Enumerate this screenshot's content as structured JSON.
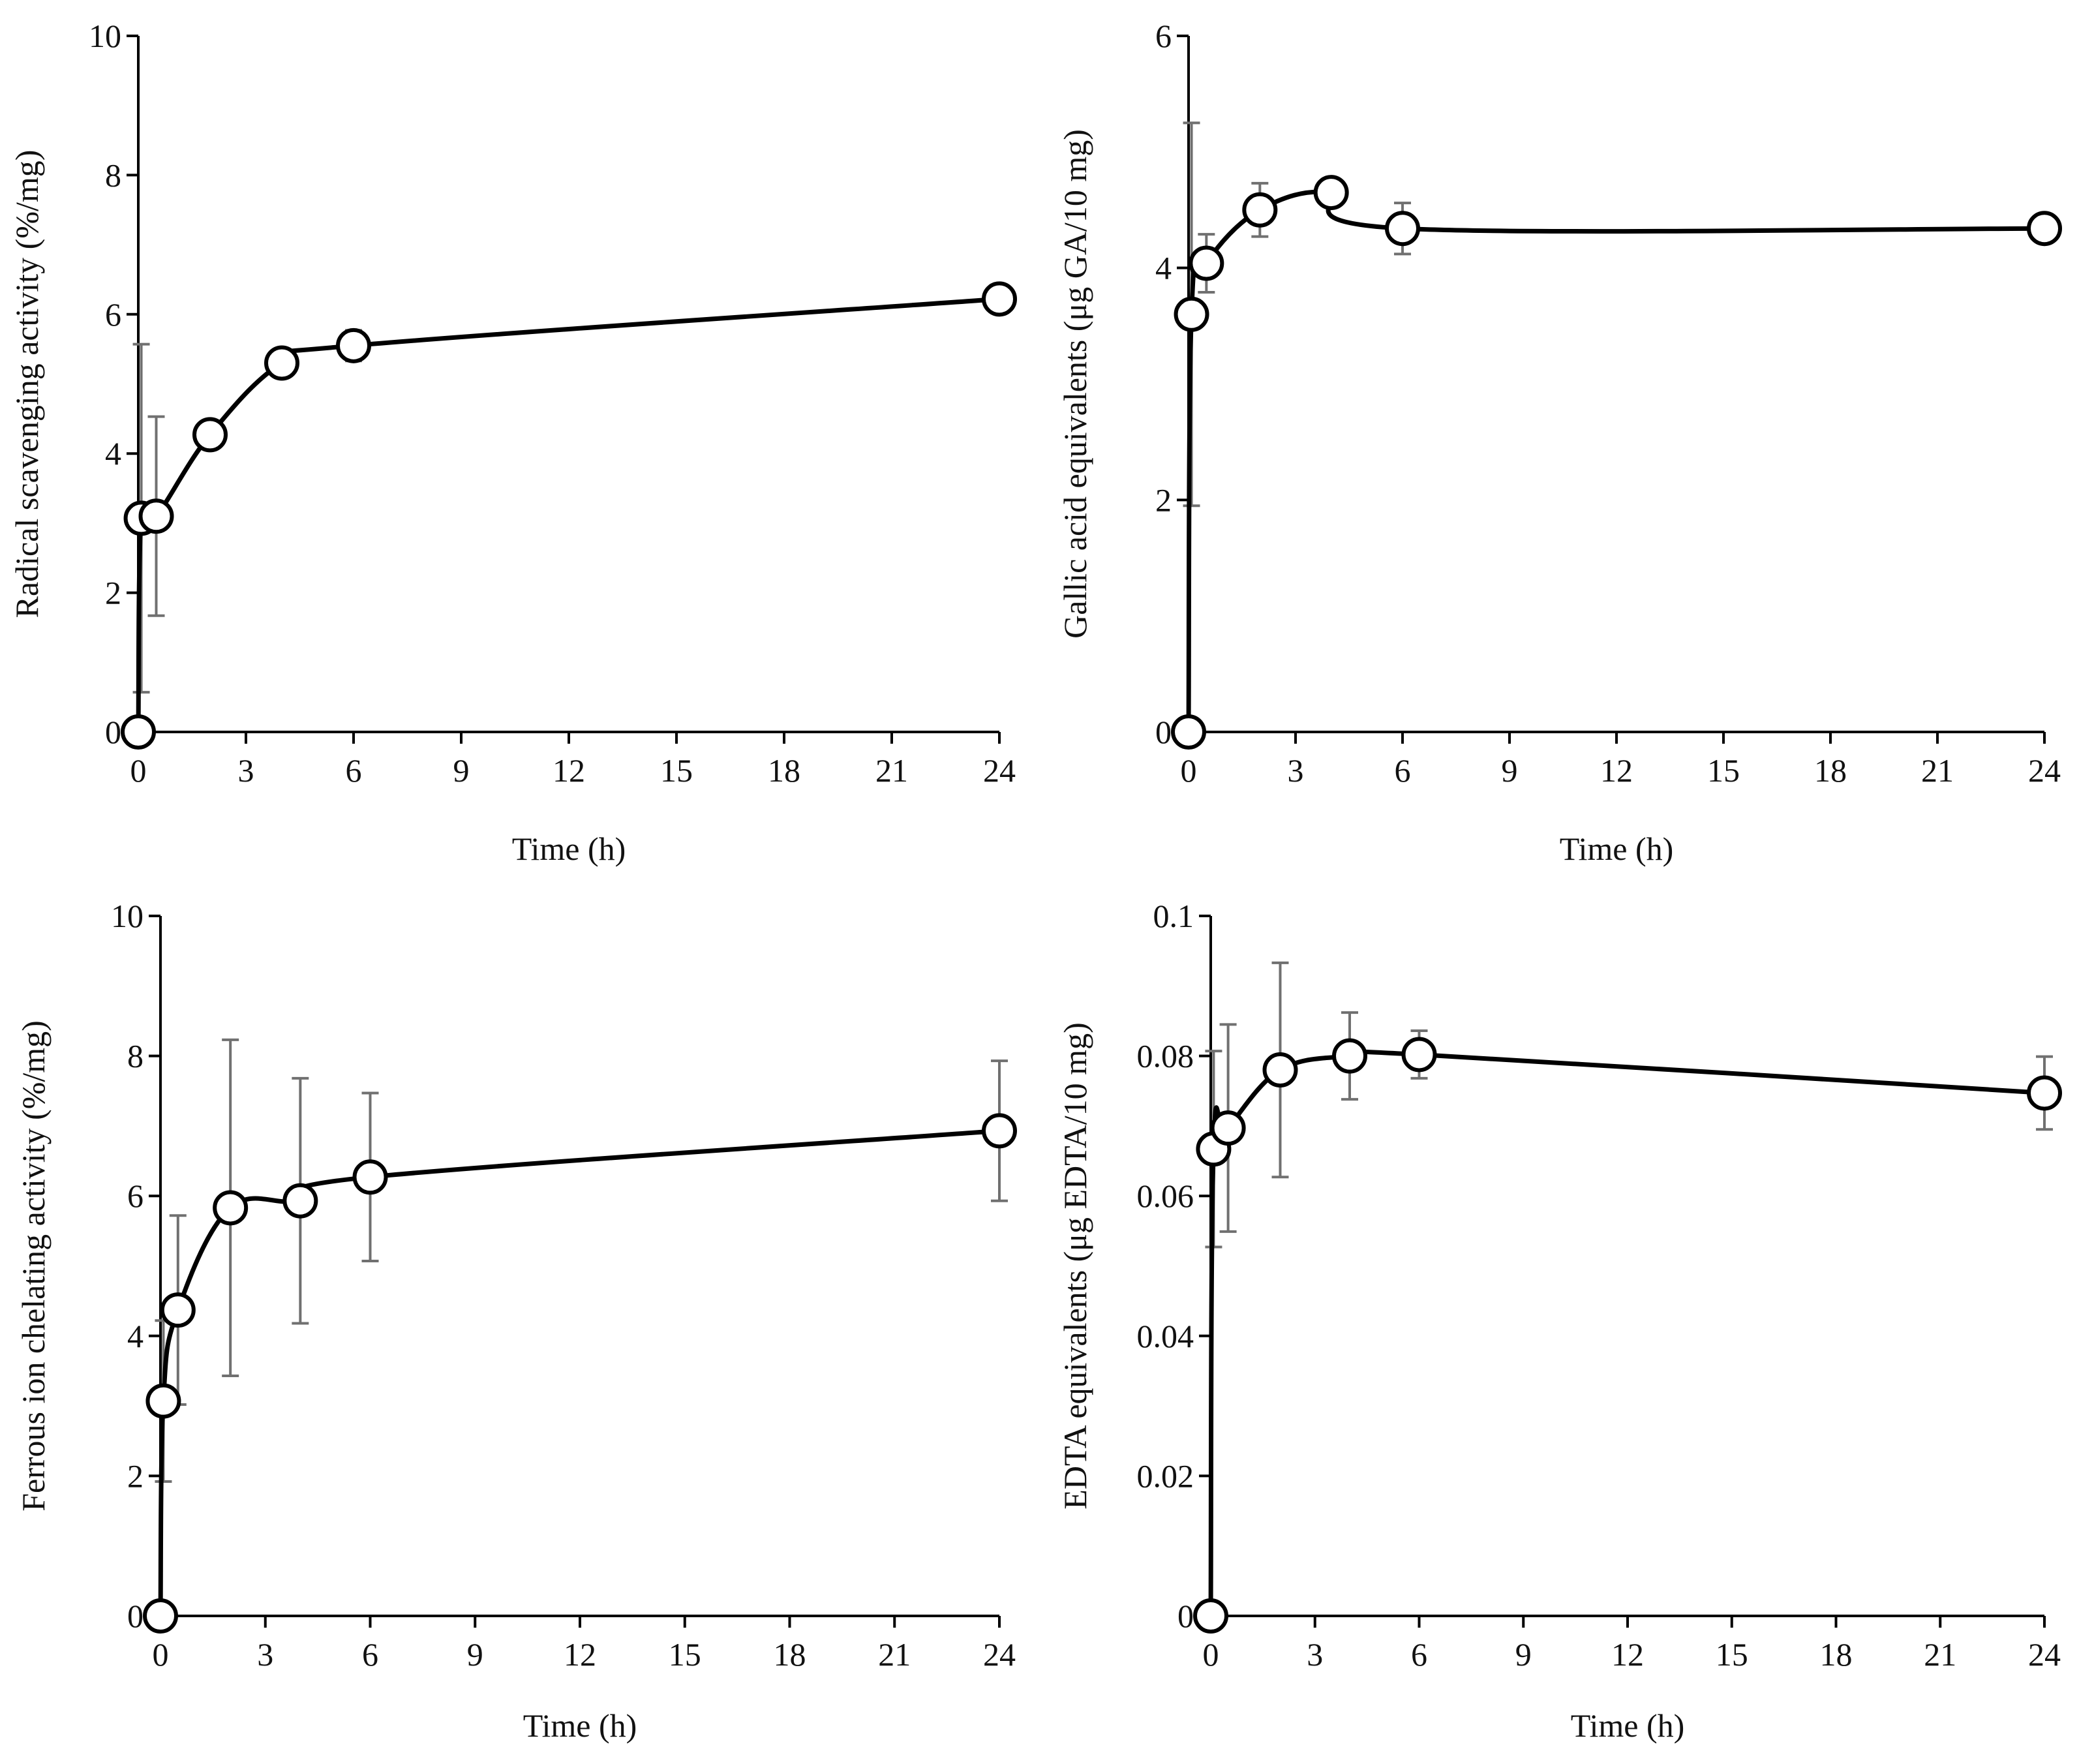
{
  "chart_data": [
    {
      "type": "line",
      "title": "",
      "xlabel": "Time (h)",
      "ylabel": "Radical scavenging activity (%/mg)",
      "xlim": [
        0,
        24
      ],
      "ylim": [
        0,
        10
      ],
      "xticks": [
        "0",
        "3",
        "6",
        "9",
        "12",
        "15",
        "18",
        "21",
        "24"
      ],
      "yticks": [
        "0",
        "2",
        "4",
        "6",
        "8",
        "10"
      ],
      "grid": false,
      "series": [
        {
          "name": "Radical scavenging activity",
          "x": [
            0,
            0.083,
            0.5,
            2,
            4,
            6,
            24
          ],
          "y": [
            0,
            3.07,
            3.1,
            4.27,
            5.3,
            5.55,
            6.22
          ],
          "err": [
            0,
            2.5,
            1.43,
            0.18,
            0.1,
            0.22,
            0.15
          ]
        }
      ]
    },
    {
      "type": "line",
      "title": "",
      "xlabel": "Time (h)",
      "ylabel": "Gallic acid equivalents (μg GA/10 mg)",
      "xlim": [
        0,
        24
      ],
      "ylim": [
        0,
        6
      ],
      "xticks": [
        "0",
        "3",
        "6",
        "9",
        "12",
        "15",
        "18",
        "21",
        "24"
      ],
      "yticks": [
        "0",
        "2",
        "4",
        "6"
      ],
      "grid": false,
      "series": [
        {
          "name": "Gallic acid equivalents",
          "x": [
            0,
            0.083,
            0.5,
            2,
            4,
            6,
            24
          ],
          "y": [
            0,
            3.6,
            4.04,
            4.5,
            4.65,
            4.34,
            4.34
          ],
          "err": [
            0,
            1.65,
            0.25,
            0.23,
            0.05,
            0.22,
            0.05
          ]
        }
      ]
    },
    {
      "type": "line",
      "title": "",
      "xlabel": "Time (h)",
      "ylabel": "Ferrous ion chelating activity (%/mg)",
      "xlim": [
        0,
        24
      ],
      "ylim": [
        0,
        10
      ],
      "xticks": [
        "0",
        "3",
        "6",
        "9",
        "12",
        "15",
        "18",
        "21",
        "24"
      ],
      "yticks": [
        "0",
        "2",
        "4",
        "6",
        "8",
        "10"
      ],
      "grid": false,
      "series": [
        {
          "name": "Ferrous ion chelating activity",
          "x": [
            0,
            0.083,
            0.5,
            2,
            4,
            6,
            24
          ],
          "y": [
            0,
            3.07,
            4.37,
            5.83,
            5.93,
            6.27,
            6.93
          ],
          "err": [
            0,
            1.15,
            1.35,
            2.4,
            1.75,
            1.2,
            1.0
          ]
        }
      ]
    },
    {
      "type": "line",
      "title": "",
      "xlabel": "Time (h)",
      "ylabel": "EDTA equivalents (μg EDTA/10 mg)",
      "xlim": [
        0,
        24
      ],
      "ylim": [
        0,
        0.1
      ],
      "xticks": [
        "0",
        "3",
        "6",
        "9",
        "12",
        "15",
        "18",
        "21",
        "24"
      ],
      "yticks": [
        "0",
        "0.02",
        "0.04",
        "0.06",
        "0.08",
        "0.1"
      ],
      "grid": false,
      "series": [
        {
          "name": "EDTA equivalents",
          "x": [
            0,
            0.083,
            0.5,
            2,
            4,
            6,
            24
          ],
          "y": [
            0,
            0.0667,
            0.0697,
            0.078,
            0.08,
            0.0802,
            0.0747
          ],
          "err": [
            0,
            0.014,
            0.0148,
            0.0153,
            0.0062,
            0.0034,
            0.0052
          ]
        }
      ]
    }
  ]
}
